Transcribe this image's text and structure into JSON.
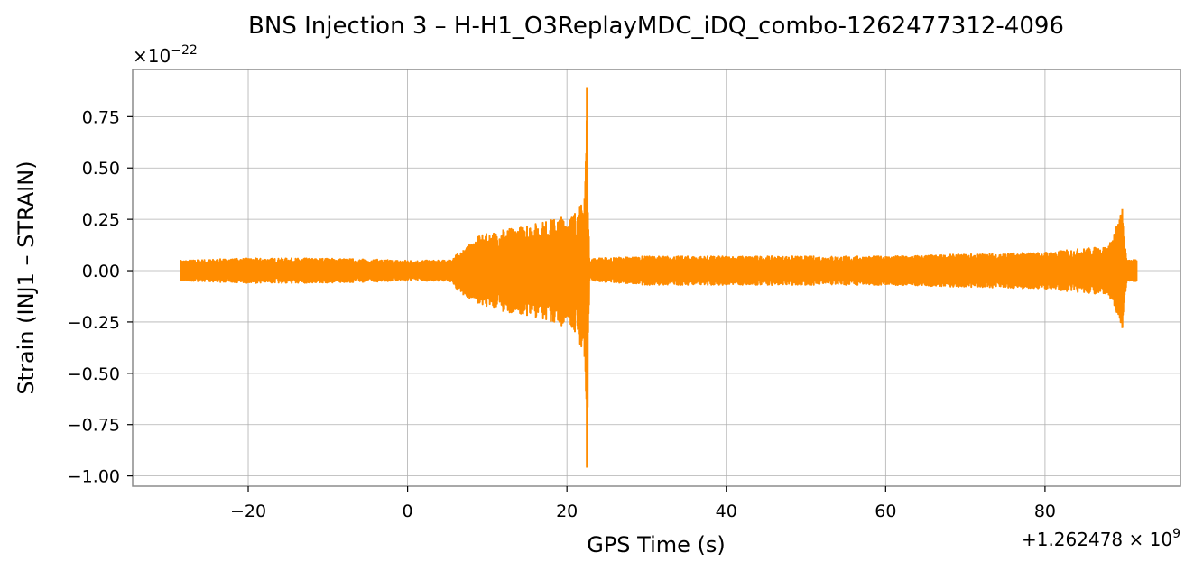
{
  "chart_data": {
    "type": "line",
    "title": "BNS Injection 3 – H-H1_O3ReplayMDC_iDQ_combo-1262477312-4096",
    "xlabel": "GPS Time (s)",
    "ylabel": "Strain (INJ1 – STRAIN)",
    "x_offset_label": "+1.262478 × 10^9",
    "y_scale_label": "×10^−22",
    "xlim": [
      -34.5,
      97
    ],
    "ylim": [
      -1.05,
      0.98
    ],
    "x_ticks": [
      -20,
      0,
      20,
      40,
      60,
      80
    ],
    "x_tick_labels": [
      "−20",
      "0",
      "20",
      "40",
      "60",
      "80"
    ],
    "y_ticks": [
      0.75,
      0.5,
      0.25,
      0.0,
      -0.25,
      -0.5,
      -0.75,
      -1.0
    ],
    "y_tick_labels": [
      "0.75",
      "0.50",
      "0.25",
      "0.00",
      "−0.25",
      "−0.50",
      "−0.75",
      "−1.00"
    ],
    "grid": true,
    "series": [
      {
        "color": "#ff8c00",
        "x_start": -28.5,
        "x_end": 91.5,
        "envelope": [
          {
            "x": -28.5,
            "upper": 0.05,
            "lower": -0.05
          },
          {
            "x": -20,
            "upper": 0.06,
            "lower": -0.06
          },
          {
            "x": -10,
            "upper": 0.06,
            "lower": -0.06
          },
          {
            "x": 0,
            "upper": 0.05,
            "lower": -0.05
          },
          {
            "x": 5,
            "upper": 0.05,
            "lower": -0.05
          },
          {
            "x": 7,
            "upper": 0.1,
            "lower": -0.12
          },
          {
            "x": 9,
            "upper": 0.17,
            "lower": -0.16
          },
          {
            "x": 12,
            "upper": 0.2,
            "lower": -0.2
          },
          {
            "x": 15,
            "upper": 0.22,
            "lower": -0.22
          },
          {
            "x": 18,
            "upper": 0.25,
            "lower": -0.25
          },
          {
            "x": 21,
            "upper": 0.28,
            "lower": -0.3
          },
          {
            "x": 22.2,
            "upper": 0.35,
            "lower": -0.42
          },
          {
            "x": 22.5,
            "upper": 0.89,
            "lower": -0.96
          },
          {
            "x": 22.8,
            "upper": 0.06,
            "lower": -0.05
          },
          {
            "x": 30,
            "upper": 0.07,
            "lower": -0.07
          },
          {
            "x": 40,
            "upper": 0.07,
            "lower": -0.07
          },
          {
            "x": 50,
            "upper": 0.07,
            "lower": -0.07
          },
          {
            "x": 60,
            "upper": 0.07,
            "lower": -0.07
          },
          {
            "x": 70,
            "upper": 0.08,
            "lower": -0.08
          },
          {
            "x": 80,
            "upper": 0.09,
            "lower": -0.09
          },
          {
            "x": 88,
            "upper": 0.12,
            "lower": -0.12
          },
          {
            "x": 89.7,
            "upper": 0.3,
            "lower": -0.28
          },
          {
            "x": 90.2,
            "upper": 0.06,
            "lower": -0.06
          },
          {
            "x": 91.5,
            "upper": 0.05,
            "lower": -0.05
          }
        ]
      }
    ]
  }
}
